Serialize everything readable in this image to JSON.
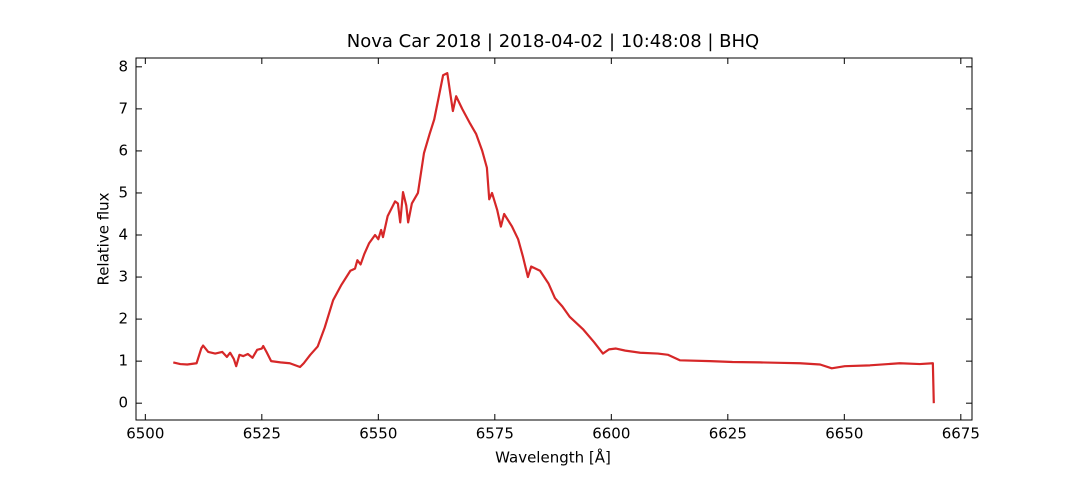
{
  "chart_data": {
    "type": "line",
    "title": "Nova Car 2018 | 2018-04-02 | 10:48:08 | BHQ",
    "x_label": "Wavelength [Å]",
    "y_label": "Relative flux",
    "xlim": [
      6498,
      6677.4
    ],
    "ylim": [
      -0.4,
      8.21
    ],
    "xticks": [
      6500,
      6525,
      6550,
      6575,
      6600,
      6625,
      6650,
      6675
    ],
    "yticks": [
      0,
      1,
      2,
      3,
      4,
      5,
      6,
      7,
      8
    ],
    "x": [
      6506,
      6507.5,
      6509,
      6511,
      6512,
      6512.4,
      6513.5,
      6515,
      6516.5,
      6517.5,
      6518.2,
      6519,
      6519.5,
      6520.2,
      6521,
      6522,
      6523,
      6524,
      6525,
      6525.3,
      6526,
      6527,
      6529,
      6531,
      6533.2,
      6534,
      6535.4,
      6537,
      6538.5,
      6540.3,
      6542,
      6544,
      6545,
      6545.5,
      6546.2,
      6547,
      6548,
      6549.3,
      6550,
      6550.6,
      6551,
      6552,
      6553.6,
      6554.2,
      6554.7,
      6555.3,
      6556,
      6556.4,
      6557.2,
      6558.5,
      6559.8,
      6561,
      6562,
      6563,
      6563.9,
      6564.8,
      6565.4,
      6566,
      6566.7,
      6568,
      6569.7,
      6571,
      6572.3,
      6573.3,
      6573.8,
      6574.4,
      6575.5,
      6576.3,
      6577,
      6578.7,
      6580,
      6581,
      6582.1,
      6582.8,
      6584.7,
      6586.5,
      6587.9,
      6589.5,
      6591.1,
      6594,
      6596.3,
      6598.2,
      6599.5,
      6601,
      6603,
      6606.2,
      6610,
      6612.2,
      6614.7,
      6621.2,
      6626,
      6631.9,
      6636,
      6640.5,
      6644.8,
      6647.3,
      6650.1,
      6655.5,
      6661.9,
      6666.2,
      6669,
      6669.2
    ],
    "values": [
      0.97,
      0.93,
      0.92,
      0.95,
      1.3,
      1.37,
      1.22,
      1.18,
      1.22,
      1.1,
      1.2,
      1.05,
      0.88,
      1.15,
      1.12,
      1.17,
      1.08,
      1.27,
      1.3,
      1.36,
      1.22,
      1.0,
      0.97,
      0.95,
      0.86,
      0.95,
      1.15,
      1.35,
      1.8,
      2.45,
      2.8,
      3.15,
      3.2,
      3.4,
      3.3,
      3.55,
      3.8,
      4.0,
      3.9,
      4.12,
      3.95,
      4.45,
      4.8,
      4.75,
      4.3,
      5.02,
      4.7,
      4.3,
      4.75,
      5.0,
      5.95,
      6.4,
      6.75,
      7.3,
      7.8,
      7.85,
      7.4,
      6.95,
      7.3,
      7.0,
      6.65,
      6.4,
      6.0,
      5.6,
      4.85,
      5.0,
      4.6,
      4.2,
      4.5,
      4.2,
      3.9,
      3.5,
      3.0,
      3.25,
      3.15,
      2.85,
      2.5,
      2.3,
      2.05,
      1.75,
      1.45,
      1.18,
      1.28,
      1.3,
      1.25,
      1.2,
      1.18,
      1.15,
      1.02,
      1.0,
      0.98,
      0.97,
      0.96,
      0.95,
      0.92,
      0.83,
      0.88,
      0.9,
      0.95,
      0.93,
      0.95,
      0.0
    ],
    "color": "#d62728"
  }
}
